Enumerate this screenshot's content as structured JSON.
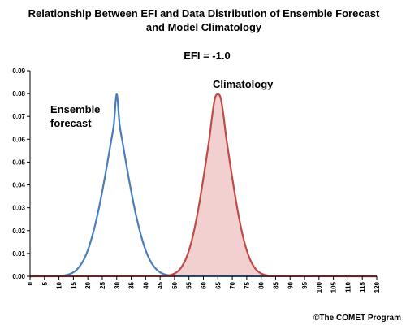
{
  "chart_data": {
    "type": "line",
    "title_line1": "Relationship Between EFI and Data Distribution of Ensemble Forecast",
    "title_line2": "and Model Climatology",
    "subtitle": "EFI = -1.0",
    "xlim": [
      0,
      120
    ],
    "ylim": [
      0,
      0.09
    ],
    "x_ticks": [
      0,
      5,
      10,
      15,
      20,
      25,
      30,
      35,
      40,
      45,
      50,
      55,
      60,
      65,
      70,
      75,
      80,
      85,
      90,
      95,
      100,
      105,
      110,
      115,
      120
    ],
    "y_ticks": [
      "0.00",
      "0.01",
      "0.02",
      "0.03",
      "0.04",
      "0.05",
      "0.06",
      "0.07",
      "0.08",
      "0.09"
    ],
    "y_tick_values": [
      0,
      0.01,
      0.02,
      0.03,
      0.04,
      0.05,
      0.06,
      0.07,
      0.08,
      0.09
    ],
    "grid": false,
    "legend": "none",
    "series": [
      {
        "label": "Ensemble forecast",
        "label_line1": "Ensemble",
        "label_line2": "forecast",
        "color": "#4a7ebb",
        "filled": false,
        "x": [
          0,
          10,
          12,
          14,
          16,
          18,
          20,
          22,
          24,
          26,
          28,
          29,
          30,
          31,
          32,
          34,
          36,
          38,
          40,
          42,
          44,
          46,
          48,
          50,
          120
        ],
        "y": [
          0,
          0.0001,
          0.0004,
          0.0011,
          0.0027,
          0.0059,
          0.0114,
          0.0198,
          0.0308,
          0.0441,
          0.0588,
          0.0664,
          0.0797,
          0.0664,
          0.0588,
          0.0441,
          0.0308,
          0.0198,
          0.0114,
          0.0059,
          0.0027,
          0.0011,
          0.0004,
          0.0001,
          0
        ]
      },
      {
        "label": "Climatology",
        "color": "#be4b48",
        "fill_color": "#f2d0cf",
        "filled": true,
        "x": [
          0,
          46,
          48,
          50,
          52,
          54,
          56,
          58,
          60,
          62,
          63,
          64,
          65,
          66,
          67,
          68,
          70,
          72,
          74,
          76,
          78,
          80,
          82,
          84,
          120
        ],
        "y": [
          0,
          0.0001,
          0.0004,
          0.0012,
          0.0033,
          0.0078,
          0.0158,
          0.0278,
          0.043,
          0.0598,
          0.07,
          0.078,
          0.0797,
          0.078,
          0.07,
          0.0598,
          0.043,
          0.0278,
          0.0158,
          0.0078,
          0.0033,
          0.0012,
          0.0004,
          0.0001,
          0
        ]
      }
    ]
  },
  "credit": "©The COMET Program",
  "colors": {
    "axis": "#000000",
    "background": "#ffffff"
  }
}
